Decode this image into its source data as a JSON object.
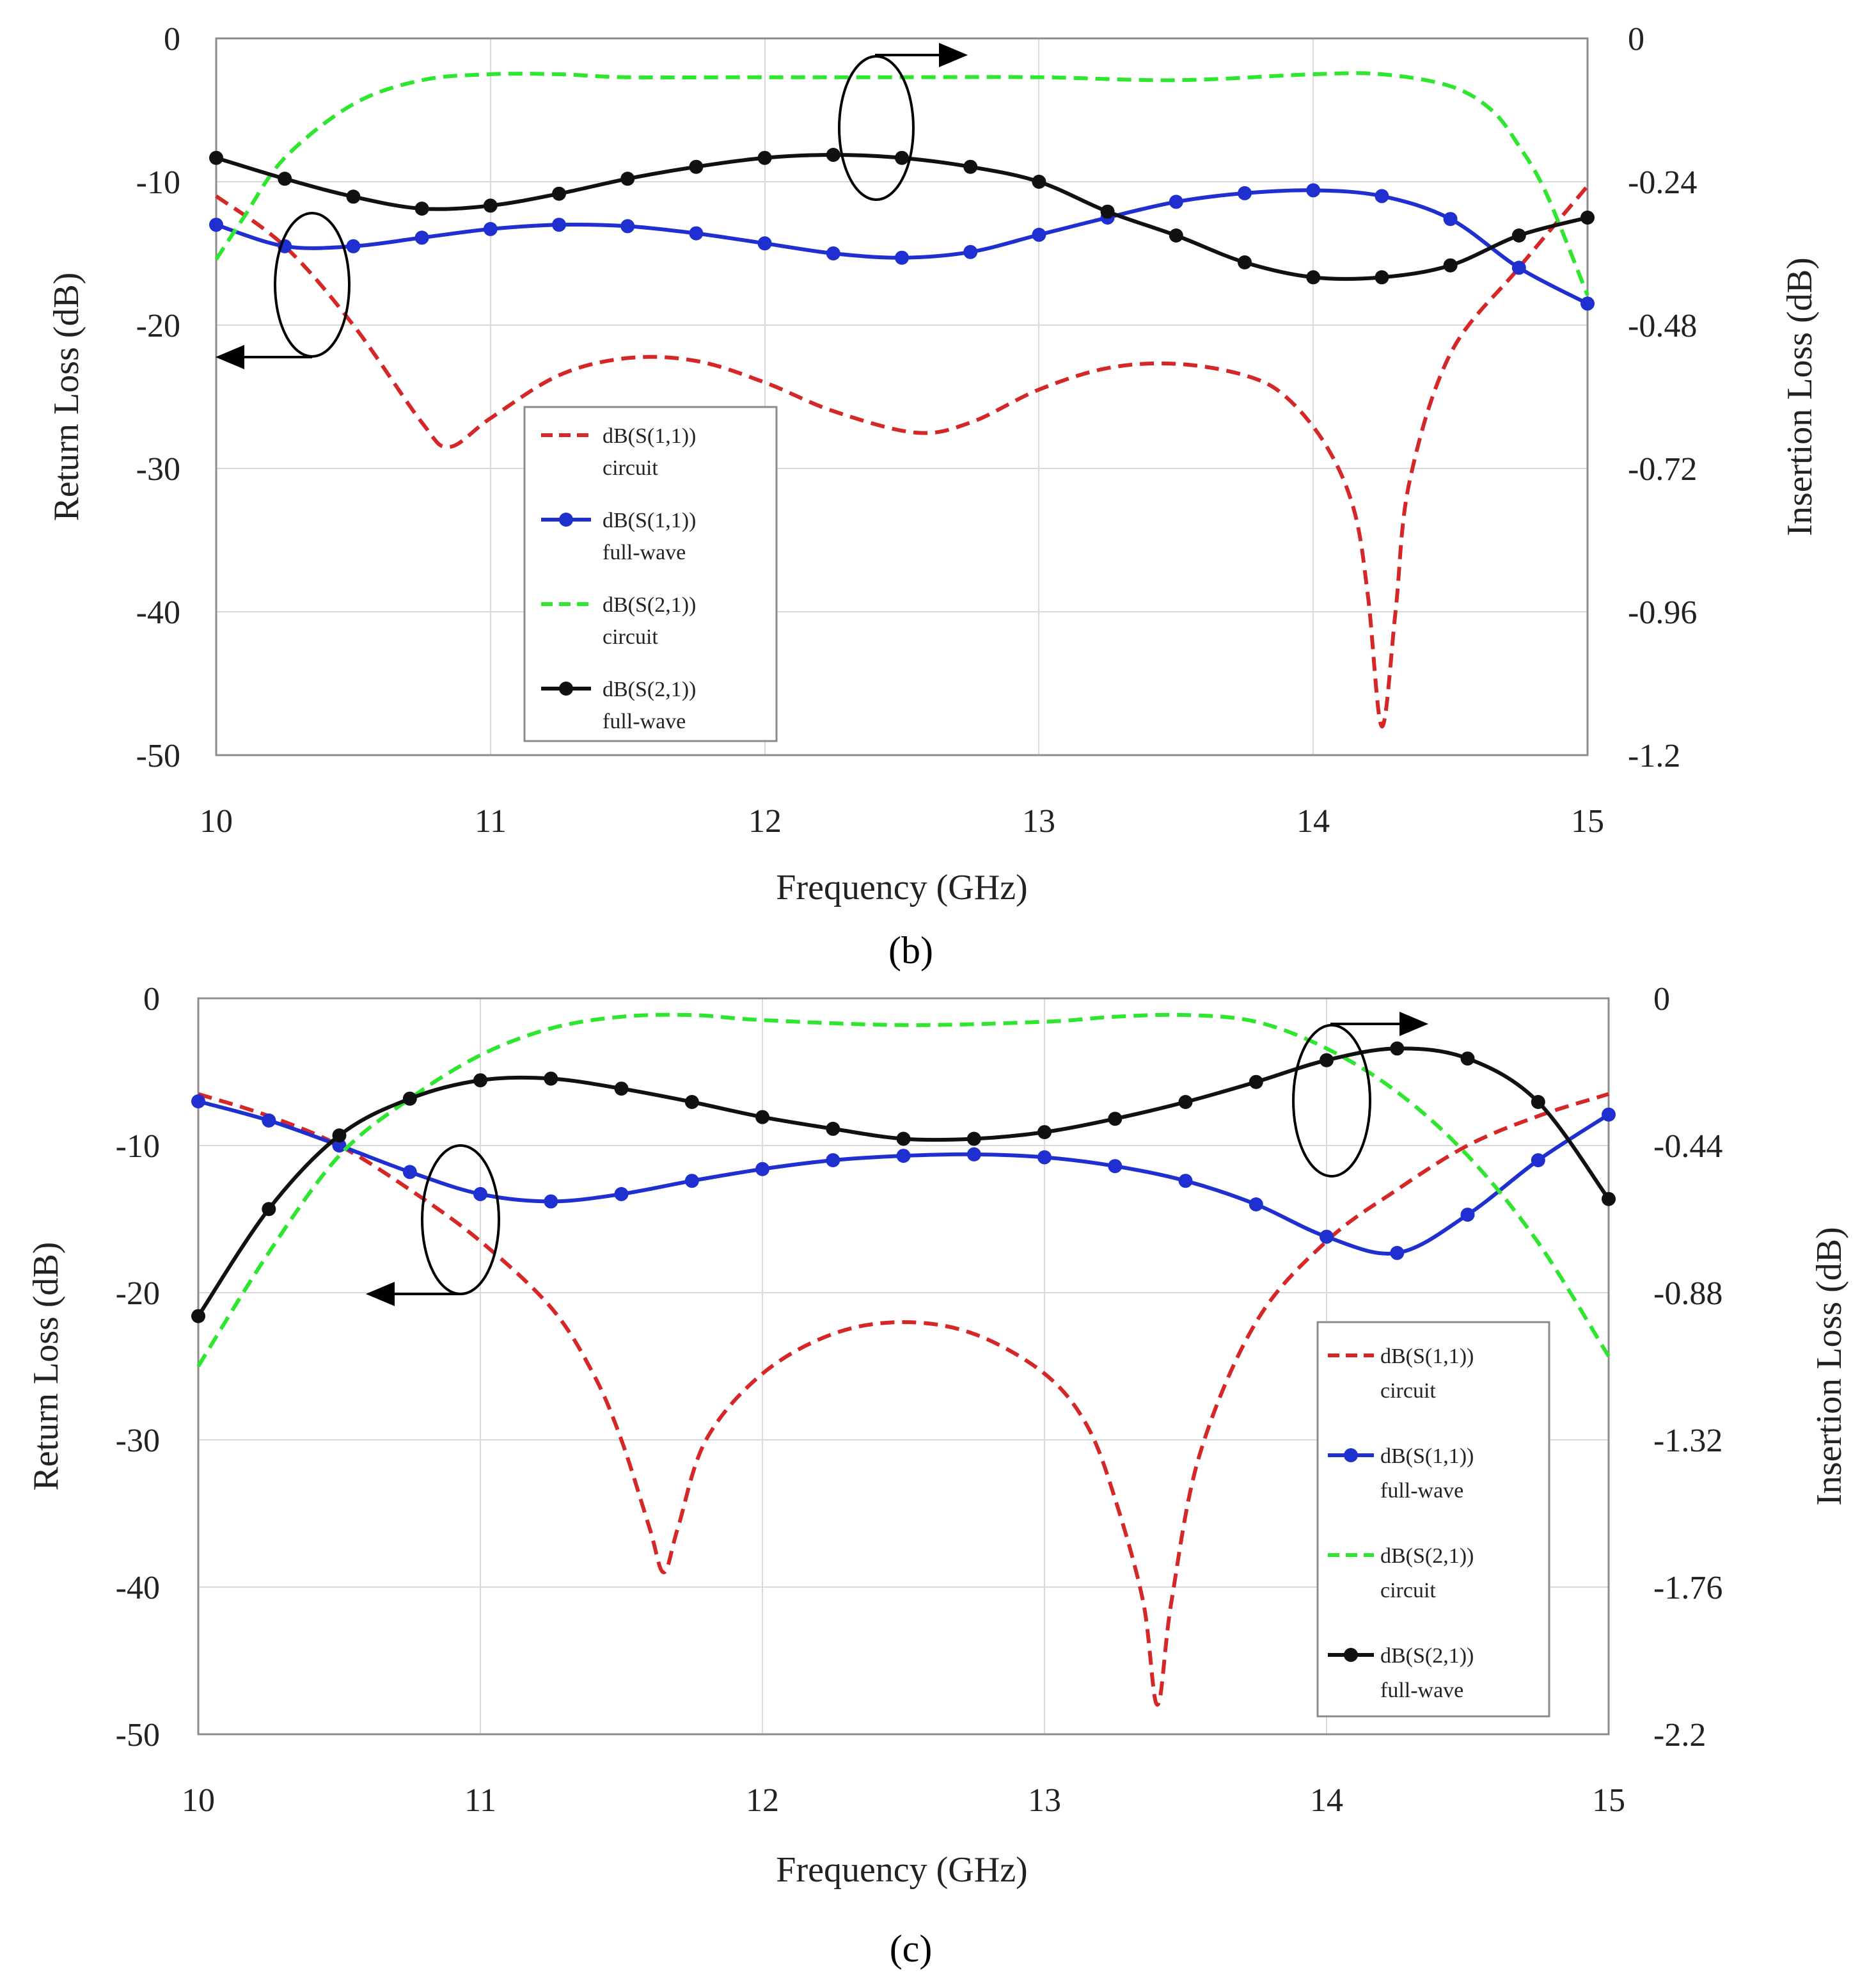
{
  "colors": {
    "s11_circuit": "#d62728",
    "s11_fullwave": "#1f2fd0",
    "s21_circuit": "#2ee62e",
    "s21_fullwave": "#111111"
  },
  "chart_data": [
    {
      "type": "line",
      "panel_label": "(b)",
      "xlabel": "Frequency (GHz)",
      "ylabel_left": "Return Loss (dB)",
      "ylabel_right": "Insertion Loss (dB)",
      "xlim": [
        10,
        15
      ],
      "ylim_left": [
        -50,
        0
      ],
      "ylim_right": [
        -1.2,
        0
      ],
      "x_ticks": [
        "10",
        "11",
        "12",
        "13",
        "14",
        "15"
      ],
      "y_ticks_left": [
        "0",
        "-10",
        "-20",
        "-30",
        "-40",
        "-50"
      ],
      "y_ticks_right": [
        "0",
        "-0.24",
        "-0.48",
        "-0.72",
        "-0.96",
        "-1.2"
      ],
      "grid": true,
      "legend_position": "lower-center",
      "series": [
        {
          "name": "dB(S(1,1))",
          "sub": "circuit",
          "axis": "left",
          "style": "dashed",
          "markers": false,
          "x": [
            10,
            10.25,
            10.5,
            10.75,
            10.85,
            11,
            11.25,
            11.5,
            11.75,
            12,
            12.25,
            12.55,
            12.75,
            13,
            13.25,
            13.5,
            13.75,
            13.9,
            14.05,
            14.15,
            14.2,
            14.25,
            14.3,
            14.35,
            14.5,
            14.75,
            15
          ],
          "y": [
            -11,
            -14.5,
            -20,
            -26.8,
            -28.5,
            -26.5,
            -23.5,
            -22.3,
            -22.5,
            -24,
            -26,
            -27.5,
            -26.8,
            -24.5,
            -23,
            -22.7,
            -23.5,
            -25,
            -28.5,
            -33,
            -39,
            -48,
            -40,
            -31,
            -22,
            -16,
            -10.3
          ]
        },
        {
          "name": "dB(S(1,1))",
          "sub": "full-wave",
          "axis": "left",
          "style": "solid",
          "markers": true,
          "x": [
            10,
            10.25,
            10.5,
            10.75,
            11,
            11.25,
            11.5,
            11.75,
            12,
            12.25,
            12.5,
            12.75,
            13,
            13.25,
            13.5,
            13.75,
            14,
            14.25,
            14.5,
            14.75,
            15
          ],
          "y": [
            -13,
            -14.5,
            -14.5,
            -13.9,
            -13.3,
            -13,
            -13.1,
            -13.6,
            -14.3,
            -15,
            -15.3,
            -14.9,
            -13.7,
            -12.5,
            -11.4,
            -10.8,
            -10.6,
            -11,
            -12.6,
            -16,
            -18.5
          ]
        },
        {
          "name": "dB(S(2,1))",
          "sub": "circuit",
          "axis": "right",
          "style": "dashed",
          "markers": false,
          "x": [
            10,
            10.1,
            10.25,
            10.5,
            10.75,
            11,
            11.25,
            11.5,
            12,
            12.5,
            13,
            13.5,
            14,
            14.25,
            14.5,
            14.65,
            14.75,
            14.85,
            15
          ],
          "y": [
            -0.37,
            -0.3,
            -0.2,
            -0.11,
            -0.07,
            -0.06,
            -0.06,
            -0.065,
            -0.065,
            -0.065,
            -0.065,
            -0.07,
            -0.06,
            -0.06,
            -0.08,
            -0.12,
            -0.18,
            -0.26,
            -0.43
          ]
        },
        {
          "name": "dB(S(2,1))",
          "sub": "full-wave",
          "axis": "right",
          "style": "solid",
          "markers": true,
          "x": [
            10,
            10.25,
            10.5,
            10.75,
            11,
            11.25,
            11.5,
            11.75,
            12,
            12.25,
            12.5,
            12.75,
            13,
            13.25,
            13.5,
            13.75,
            14,
            14.25,
            14.5,
            14.75,
            15
          ],
          "y": [
            -0.2,
            -0.235,
            -0.265,
            -0.285,
            -0.28,
            -0.26,
            -0.235,
            -0.215,
            -0.2,
            -0.195,
            -0.2,
            -0.215,
            -0.24,
            -0.29,
            -0.33,
            -0.375,
            -0.4,
            -0.4,
            -0.38,
            -0.33,
            -0.3
          ]
        }
      ],
      "legend": [
        {
          "line1": "dB(S(1,1))",
          "line2": "circuit"
        },
        {
          "line1": "dB(S(1,1))",
          "line2": "full-wave"
        },
        {
          "line1": "dB(S(2,1))",
          "line2": "circuit"
        },
        {
          "line1": "dB(S(2,1))",
          "line2": "full-wave"
        }
      ]
    },
    {
      "type": "line",
      "panel_label": "(c)",
      "xlabel": "Frequency (GHz)",
      "ylabel_left": "Return Loss (dB)",
      "ylabel_right": "Insertion Loss (dB)",
      "xlim": [
        10,
        15
      ],
      "ylim_left": [
        -50,
        0
      ],
      "ylim_right": [
        -2.2,
        0
      ],
      "x_ticks": [
        "10",
        "11",
        "12",
        "13",
        "14",
        "15"
      ],
      "y_ticks_left": [
        "0",
        "-10",
        "-20",
        "-30",
        "-40",
        "-50"
      ],
      "y_ticks_right": [
        "0",
        "-0.44",
        "-0.88",
        "-1.32",
        "-1.76",
        "-2.2"
      ],
      "grid": true,
      "legend_position": "lower-right",
      "series": [
        {
          "name": "dB(S(1,1))",
          "sub": "circuit",
          "axis": "left",
          "style": "dashed",
          "markers": false,
          "x": [
            10,
            10.25,
            10.5,
            10.75,
            11,
            11.25,
            11.4,
            11.5,
            11.6,
            11.65,
            11.7,
            11.8,
            12,
            12.25,
            12.5,
            12.75,
            13,
            13.15,
            13.25,
            13.35,
            13.4,
            13.45,
            13.55,
            13.75,
            14,
            14.25,
            14.5,
            14.75,
            15
          ],
          "y": [
            -6.5,
            -8,
            -10,
            -13,
            -16.5,
            -21,
            -25.5,
            -30,
            -36,
            -39,
            -36,
            -30,
            -25.5,
            -22.8,
            -22,
            -22.8,
            -25.5,
            -29,
            -34,
            -41,
            -48,
            -41,
            -31,
            -22,
            -16.5,
            -13,
            -10,
            -8,
            -6.5
          ]
        },
        {
          "name": "dB(S(1,1))",
          "sub": "full-wave",
          "axis": "left",
          "style": "solid",
          "markers": true,
          "x": [
            10,
            10.25,
            10.5,
            10.75,
            11,
            11.25,
            11.5,
            11.75,
            12,
            12.25,
            12.5,
            12.75,
            13,
            13.25,
            13.5,
            13.75,
            14,
            14.25,
            14.5,
            14.75,
            15
          ],
          "y": [
            -7,
            -8.3,
            -10,
            -11.8,
            -13.3,
            -13.8,
            -13.3,
            -12.4,
            -11.6,
            -11,
            -10.7,
            -10.6,
            -10.8,
            -11.4,
            -12.4,
            -14,
            -16.2,
            -17.3,
            -14.7,
            -11,
            -7.9
          ]
        },
        {
          "name": "dB(S(2,1))",
          "sub": "circuit",
          "axis": "right",
          "style": "dashed",
          "markers": false,
          "x": [
            10,
            10.25,
            10.5,
            10.75,
            11,
            11.25,
            11.5,
            11.75,
            12,
            12.5,
            13,
            13.25,
            13.5,
            13.75,
            14,
            14.25,
            14.5,
            14.75,
            15
          ],
          "y": [
            -1.1,
            -0.76,
            -0.47,
            -0.3,
            -0.17,
            -0.09,
            -0.055,
            -0.05,
            -0.065,
            -0.08,
            -0.07,
            -0.055,
            -0.05,
            -0.07,
            -0.15,
            -0.28,
            -0.47,
            -0.73,
            -1.07
          ]
        },
        {
          "name": "dB(S(2,1))",
          "sub": "full-wave",
          "axis": "right",
          "style": "solid",
          "markers": true,
          "x": [
            10,
            10.25,
            10.5,
            10.75,
            11,
            11.25,
            11.5,
            11.75,
            12,
            12.25,
            12.5,
            12.75,
            13,
            13.25,
            13.5,
            13.75,
            14,
            14.25,
            14.5,
            14.75,
            15
          ],
          "y": [
            -0.95,
            -0.63,
            -0.41,
            -0.3,
            -0.245,
            -0.24,
            -0.27,
            -0.31,
            -0.355,
            -0.39,
            -0.42,
            -0.42,
            -0.4,
            -0.36,
            -0.31,
            -0.25,
            -0.185,
            -0.15,
            -0.18,
            -0.31,
            -0.6
          ]
        }
      ],
      "legend": [
        {
          "line1": "dB(S(1,1))",
          "line2": "circuit"
        },
        {
          "line1": "dB(S(1,1))",
          "line2": "full-wave"
        },
        {
          "line1": "dB(S(2,1))",
          "line2": "circuit"
        },
        {
          "line1": "dB(S(2,1))",
          "line2": "full-wave"
        }
      ]
    }
  ]
}
